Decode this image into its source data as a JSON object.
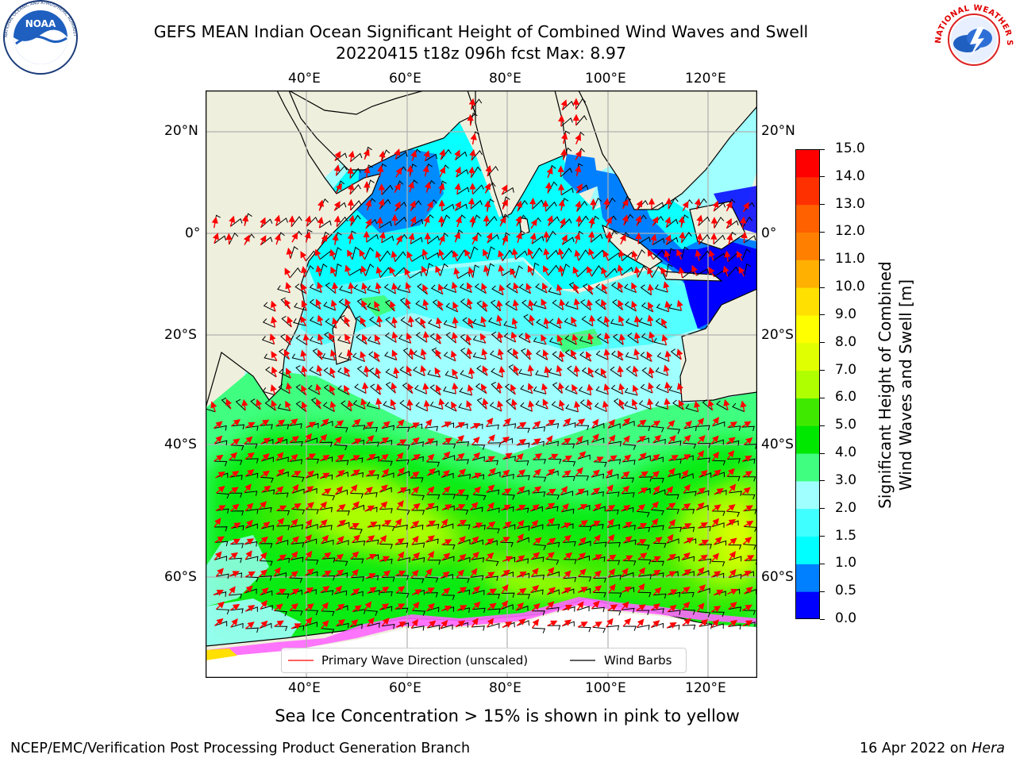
{
  "title": {
    "line1": "GEFS MEAN Indian Ocean Significant Height of Combined Wind Waves and Swell",
    "line2": "20220415 t18z 096h fcst   Max: 8.97"
  },
  "logos": {
    "noaa_text": "NOAA",
    "noaa_ring": "NATIONAL OCEANIC AND ATMOSPHERIC ADMINISTRATION · U.S. DEPARTMENT OF COMMERCE",
    "nws_ring": "NATIONAL WEATHER SERVICE"
  },
  "map": {
    "lon_labels": [
      "40°E",
      "60°E",
      "80°E",
      "100°E",
      "120°E"
    ],
    "lat_labels": [
      "20°N",
      "0°",
      "20°S",
      "40°S",
      "60°S"
    ],
    "legend": {
      "wave_label": "Primary Wave Direction (unscaled)",
      "wind_label": "Wind Barbs",
      "wave_color": "#ff0000",
      "wind_color": "#000000"
    }
  },
  "colorbar": {
    "label_line1": "Significant Height of Combined",
    "label_line2": "Wind Waves and Swell [m]",
    "ticks": [
      "0.0",
      "0.5",
      "1.0",
      "1.5",
      "2.0",
      "3.0",
      "4.0",
      "5.0",
      "6.0",
      "7.0",
      "8.0",
      "9.0",
      "10.0",
      "11.0",
      "12.0",
      "13.0",
      "14.0",
      "15.0"
    ],
    "colors": [
      "#0000ff",
      "#0080ff",
      "#00ffff",
      "#40ffff",
      "#a0ffff",
      "#40ff80",
      "#00e800",
      "#40ea00",
      "#b0ff00",
      "#e0ff00",
      "#ffff00",
      "#ffe000",
      "#ffb000",
      "#ff8000",
      "#ff6000",
      "#ff3000",
      "#ff0000"
    ]
  },
  "ice_note": "Sea Ice Concentration > 15% is shown in pink to yellow",
  "footer": {
    "left": "NCEP/EMC/Verification Post Processing Product Generation Branch",
    "right_date": "16 Apr 2022 on ",
    "right_host": "Hera"
  },
  "palette": {
    "land": "#efefdd",
    "grid": "#b0b0b0",
    "ice_white": "#ffffff",
    "ice_pink": "#ff66ff"
  }
}
